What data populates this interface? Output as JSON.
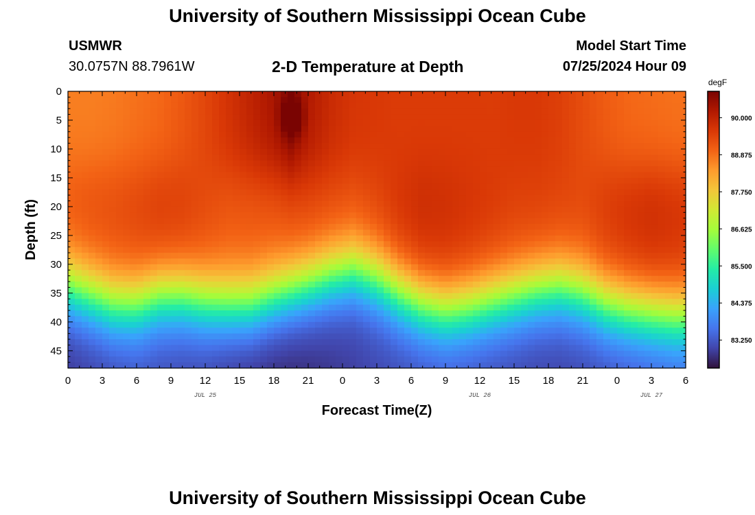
{
  "page": {
    "title_top": "University of Southern Mississippi Ocean Cube",
    "title_bottom": "University of Southern Mississippi Ocean Cube",
    "station": "USMWR",
    "coords": "30.0757N  88.7961W",
    "subtitle": "2-D Temperature at Depth",
    "model_label": "Model Start Time",
    "model_time": "07/25/2024 Hour 09"
  },
  "chart_data": {
    "type": "heatmap",
    "title": "2-D Temperature at Depth",
    "xlabel": "Forecast Time(Z)",
    "ylabel": "Depth (ft)",
    "x_hours_range": [
      0,
      54
    ],
    "y_range": [
      0,
      48
    ],
    "x_tick_labels": [
      "0",
      "3",
      "6",
      "9",
      "12",
      "15",
      "18",
      "21",
      "0",
      "3",
      "6",
      "9",
      "12",
      "15",
      "18",
      "21",
      "0",
      "3",
      "6"
    ],
    "y_ticks": [
      0,
      5,
      10,
      15,
      20,
      25,
      30,
      35,
      40,
      45
    ],
    "date_labels": [
      {
        "text": "JUL 25",
        "hour": 12
      },
      {
        "text": "JUL 26",
        "hour": 36
      },
      {
        "text": "JUL 27",
        "hour": 51
      }
    ],
    "colorbar": {
      "unit": "degF",
      "range": [
        82.4,
        90.8
      ],
      "tick_values": [
        90.0,
        88.875,
        87.75,
        86.625,
        85.5,
        84.375,
        83.25
      ],
      "tick_labels": [
        "90.000",
        "88.875",
        "87.750",
        "86.625",
        "85.500",
        "84.375",
        "83.250"
      ],
      "colors": [
        "#30123b",
        "#4145ab",
        "#4675ed",
        "#39a2fc",
        "#1bcfd4",
        "#24eca6",
        "#61fc6c",
        "#a4fc3b",
        "#d1e834",
        "#f3c63a",
        "#fe9b2d",
        "#f36315",
        "#d93806",
        "#b11901",
        "#7a0402"
      ]
    },
    "profile_hours": [
      0,
      2,
      4,
      6,
      8,
      10,
      12,
      14,
      16,
      18,
      19.5,
      21,
      23,
      25,
      27,
      29,
      31,
      33,
      35,
      37,
      39,
      41,
      43,
      45,
      47,
      49,
      51,
      53,
      54
    ],
    "thermocline_depth_ft": [
      28.5,
      30,
      31.5,
      31.5,
      30,
      30,
      31,
      31.5,
      31.5,
      30,
      29,
      28,
      26.5,
      25.5,
      27,
      29.5,
      31.5,
      32.5,
      32,
      31,
      30,
      29,
      28.5,
      29.5,
      31.5,
      32.5,
      33,
      33.5,
      33.5
    ],
    "surface_temp_degF": [
      88.7,
      88.7,
      88.75,
      88.85,
      88.95,
      89.15,
      89.4,
      89.7,
      90.0,
      90.3,
      90.7,
      90.2,
      89.85,
      89.65,
      89.6,
      89.55,
      89.55,
      89.55,
      89.55,
      89.55,
      89.6,
      89.6,
      89.5,
      89.3,
      89.1,
      88.95,
      88.9,
      88.85,
      88.85
    ],
    "mid_temp_degF": [
      89.2,
      89.3,
      89.35,
      89.45,
      89.6,
      89.55,
      89.35,
      89.2,
      89.2,
      89.25,
      89.35,
      89.4,
      89.35,
      89.3,
      89.45,
      89.7,
      89.85,
      89.8,
      89.7,
      89.6,
      89.5,
      89.5,
      89.45,
      89.4,
      89.6,
      89.75,
      89.85,
      89.75,
      89.7
    ],
    "bottom_temp_degF": [
      82.8,
      82.9,
      83.0,
      83.1,
      83.05,
      83.0,
      82.95,
      82.8,
      82.7,
      82.65,
      82.65,
      82.7,
      82.8,
      82.9,
      83.0,
      83.05,
      83.1,
      83.15,
      83.1,
      83.05,
      83.0,
      82.95,
      82.95,
      83.0,
      83.05,
      83.1,
      83.2,
      83.3,
      83.3
    ]
  }
}
